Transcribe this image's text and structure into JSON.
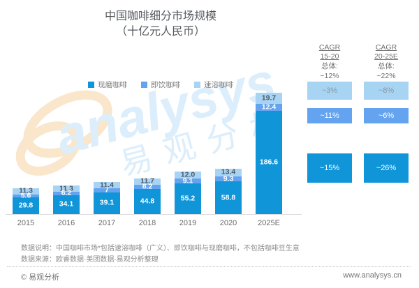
{
  "title": {
    "line1": "中国咖啡细分市场规模",
    "line2": "（十亿元人民币）"
  },
  "legend": [
    {
      "label": "现磨咖啡",
      "color": "#1095d9"
    },
    {
      "label": "即饮咖啡",
      "color": "#64a3ef"
    },
    {
      "label": "速溶咖啡",
      "color": "#a8d4f3"
    }
  ],
  "chart_data": {
    "type": "bar",
    "stacked": true,
    "title": "中国咖啡细分市场规模",
    "subtitle": "（十亿元人民币）",
    "unit": "十亿元人民币",
    "categories": [
      "2015",
      "2016",
      "2017",
      "2018",
      "2019",
      "2020",
      "2025E"
    ],
    "series": [
      {
        "name": "现磨咖啡",
        "color": "#1095d9",
        "values": [
          29.8,
          34.1,
          39.1,
          44.8,
          55.2,
          58.8,
          186.6
        ],
        "labels": [
          "29.8",
          "34.1",
          "39.1",
          "44.8",
          "55.2",
          "58.8",
          "186.6"
        ]
      },
      {
        "name": "即饮咖啡",
        "color": "#64a3ef",
        "values": [
          5.6,
          6.2,
          7,
          8.2,
          9.1,
          9.3,
          12.4
        ],
        "labels": [
          "5.6",
          "6.2",
          "7",
          "8.2",
          "9.1",
          "9.3",
          "12.4"
        ]
      },
      {
        "name": "速溶咖啡",
        "color": "#a8d4f3",
        "values": [
          11.3,
          11.3,
          11.4,
          11.7,
          12.0,
          13.4,
          19.7
        ],
        "labels": [
          "11.3",
          "11.3",
          "11.4",
          "11.7",
          "12.0",
          "13.4",
          "19.7"
        ]
      }
    ],
    "ylim": [
      0,
      220
    ],
    "grid": false,
    "legend_position": "top"
  },
  "cagr_panel": {
    "columns": [
      {
        "header_line1": "CAGR",
        "header_line2": "15-20",
        "overall_label": "总体:",
        "overall_value": "~12%",
        "instant_value": "~3%",
        "rtd_value": "~11%",
        "fresh_value": "~15%"
      },
      {
        "header_line1": "CAGR",
        "header_line2": "20-25E",
        "overall_label": "总体:",
        "overall_value": "~22%",
        "instant_value": "~8%",
        "rtd_value": "~6%",
        "fresh_value": "~26%"
      }
    ]
  },
  "notes": {
    "line1": "数据说明：中国咖啡市场*包括速溶咖啡（广义）、即饮咖啡与现磨咖啡，不包括咖啡豆生意",
    "line2": "数据来源：欧睿数据·美团数据·易观分析整理"
  },
  "footer": {
    "left": "© 易观分析",
    "right": "www.analysys.cn"
  },
  "watermark": {
    "en": "analysys",
    "cn": "易观分析"
  }
}
